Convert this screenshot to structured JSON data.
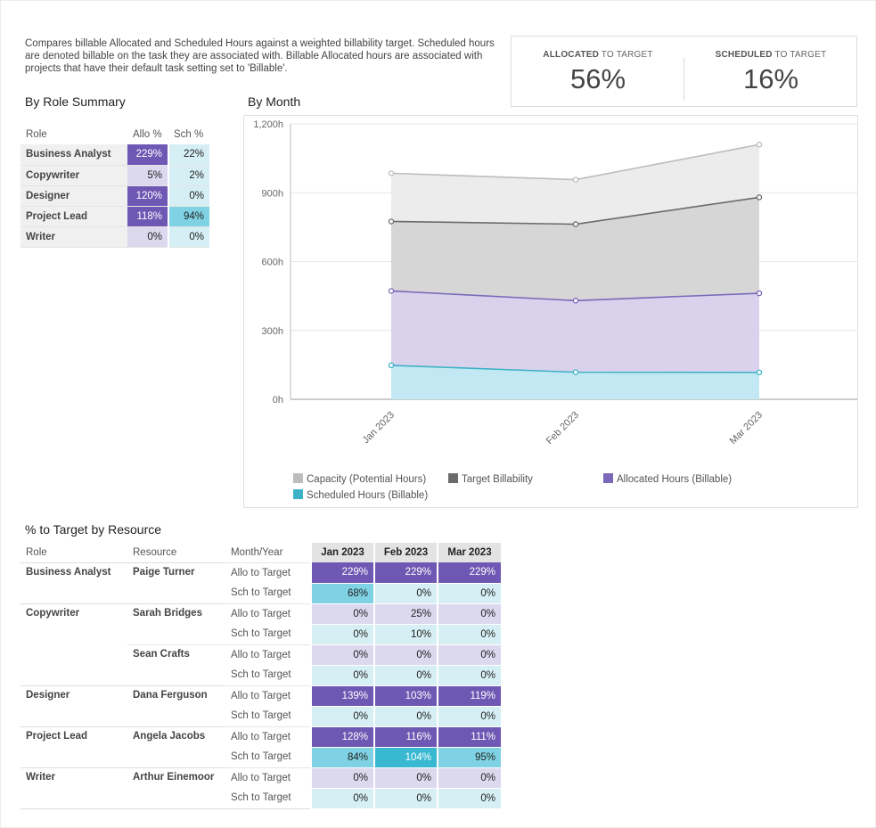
{
  "description": "Compares billable Allocated and Scheduled Hours against a weighted billability target. Scheduled hours are denoted billable on the task they are associated with. Billable Allocated hours are associated with projects that have their default task setting set to 'Billable'.",
  "kpis": {
    "allocated": {
      "label_bold": "ALLOCATED",
      "label_rest": " TO TARGET",
      "value": "56%"
    },
    "scheduled": {
      "label_bold": "SCHEDULED",
      "label_rest": " TO TARGET",
      "value": "16%"
    }
  },
  "role_summary": {
    "title": "By Role Summary",
    "headers": {
      "role": "Role",
      "allo": "Allo %",
      "sch": "Sch %"
    },
    "rows": [
      {
        "role": "Business Analyst",
        "allo": "229%",
        "sch": "22%"
      },
      {
        "role": "Copywriter",
        "allo": "5%",
        "sch": "2%"
      },
      {
        "role": "Designer",
        "allo": "120%",
        "sch": "0%"
      },
      {
        "role": "Project Lead",
        "allo": "118%",
        "sch": "94%"
      },
      {
        "role": "Writer",
        "allo": "0%",
        "sch": "0%"
      }
    ]
  },
  "by_month": {
    "title": "By Month"
  },
  "chart_data": {
    "type": "area",
    "x": [
      "Jan 2023",
      "Feb 2023",
      "Mar 2023"
    ],
    "ylim": [
      0,
      1200
    ],
    "y_ticks": [
      "0h",
      "300h",
      "600h",
      "900h",
      "1,200h"
    ],
    "grid": true,
    "legend_position": "bottom",
    "series": [
      {
        "name": "Capacity (Potential Hours)",
        "values": [
          985,
          957,
          1110
        ],
        "color": "#bdbdbd"
      },
      {
        "name": "Target Billability",
        "values": [
          775,
          763,
          880
        ],
        "color": "#6b6b6b"
      },
      {
        "name": "Allocated Hours (Billable)",
        "values": [
          472,
          430,
          462
        ],
        "color": "#7b68b8"
      },
      {
        "name": "Scheduled Hours (Billable)",
        "values": [
          148,
          118,
          117
        ],
        "color": "#3db1c6"
      }
    ]
  },
  "resource_table": {
    "title": "% to Target by Resource",
    "headers": {
      "role": "Role",
      "resource": "Resource",
      "month_year": "Month/Year",
      "months": [
        "Jan 2023",
        "Feb 2023",
        "Mar 2023"
      ]
    },
    "rows": [
      {
        "role": "Business Analyst",
        "resource": "Paige Turner",
        "metric": "Allo to Target",
        "values": [
          "229%",
          "229%",
          "229%"
        ]
      },
      {
        "role": "",
        "resource": "",
        "metric": "Sch to Target",
        "values": [
          "68%",
          "0%",
          "0%"
        ]
      },
      {
        "role": "Copywriter",
        "resource": "Sarah Bridges",
        "metric": "Allo to Target",
        "values": [
          "0%",
          "25%",
          "0%"
        ]
      },
      {
        "role": "",
        "resource": "",
        "metric": "Sch to Target",
        "values": [
          "0%",
          "10%",
          "0%"
        ]
      },
      {
        "role": "",
        "resource": "Sean Crafts",
        "metric": "Allo to Target",
        "values": [
          "0%",
          "0%",
          "0%"
        ]
      },
      {
        "role": "",
        "resource": "",
        "metric": "Sch to Target",
        "values": [
          "0%",
          "0%",
          "0%"
        ]
      },
      {
        "role": "Designer",
        "resource": "Dana Ferguson",
        "metric": "Allo to Target",
        "values": [
          "139%",
          "103%",
          "119%"
        ]
      },
      {
        "role": "",
        "resource": "",
        "metric": "Sch to Target",
        "values": [
          "0%",
          "0%",
          "0%"
        ]
      },
      {
        "role": "Project Lead",
        "resource": "Angela Jacobs",
        "metric": "Allo to Target",
        "values": [
          "128%",
          "116%",
          "111%"
        ]
      },
      {
        "role": "",
        "resource": "",
        "metric": "Sch to Target",
        "values": [
          "84%",
          "104%",
          "95%"
        ]
      },
      {
        "role": "Writer",
        "resource": "Arthur Einemoor",
        "metric": "Allo to Target",
        "values": [
          "0%",
          "0%",
          "0%"
        ]
      },
      {
        "role": "",
        "resource": "",
        "metric": "Sch to Target",
        "values": [
          "0%",
          "0%",
          "0%"
        ]
      }
    ]
  }
}
